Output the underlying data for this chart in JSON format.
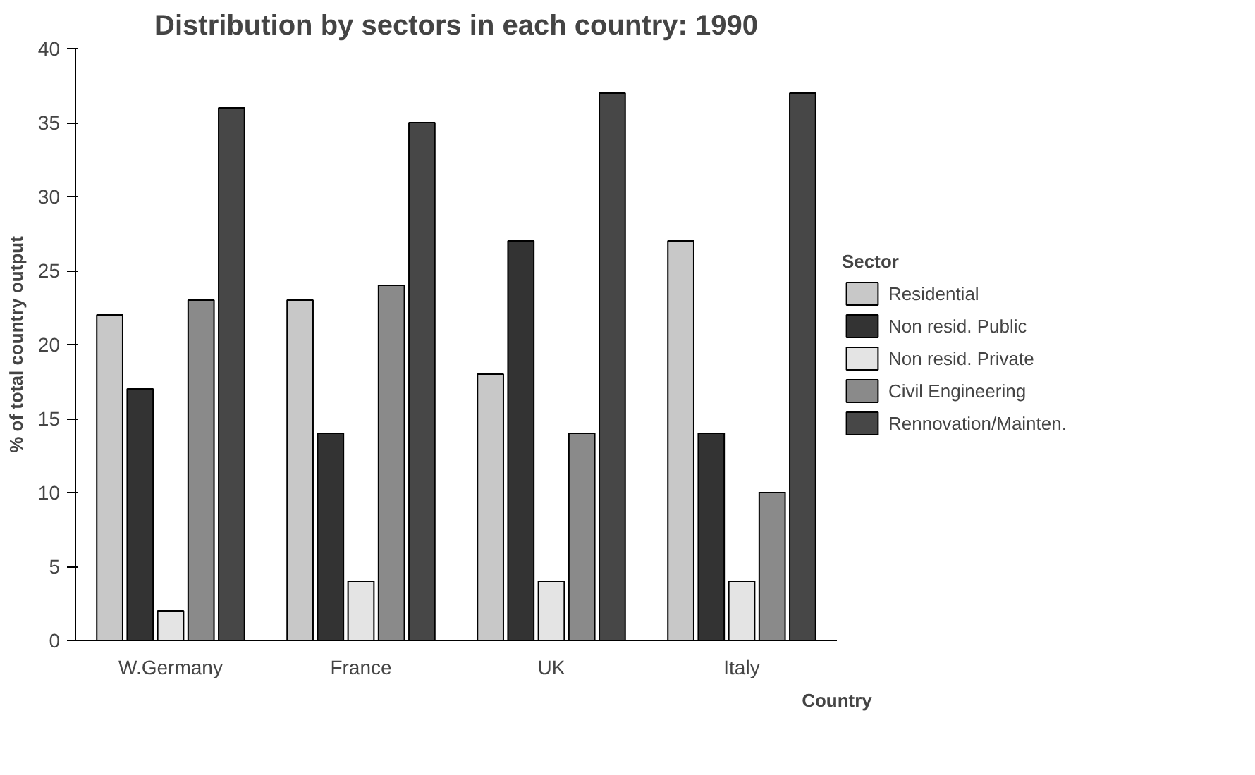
{
  "chart_data": {
    "type": "bar",
    "title": "Distribution by sectors in each country: 1990",
    "xlabel": "Country",
    "ylabel": "% of total country output",
    "legend_title": "Sector",
    "legend": "right",
    "grid": false,
    "categories": [
      "W.Germany",
      "France",
      "UK",
      "Italy"
    ],
    "ylim": [
      0,
      40
    ],
    "yticks": [
      0,
      5,
      10,
      15,
      20,
      25,
      30,
      35,
      40
    ],
    "series": [
      {
        "name": "Residential",
        "color": "#c8c8c8",
        "values": [
          22,
          23,
          18,
          27
        ]
      },
      {
        "name": "Non resid. Public",
        "color": "#333333",
        "values": [
          17,
          14,
          27,
          14
        ]
      },
      {
        "name": "Non resid. Private",
        "color": "#e4e4e4",
        "values": [
          2,
          4,
          4,
          4
        ]
      },
      {
        "name": "Civil Engineering",
        "color": "#8a8a8a",
        "values": [
          23,
          24,
          14,
          10
        ]
      },
      {
        "name": "Rennovation/Mainten.",
        "color": "#474747",
        "values": [
          36,
          35,
          37,
          37
        ]
      }
    ]
  }
}
